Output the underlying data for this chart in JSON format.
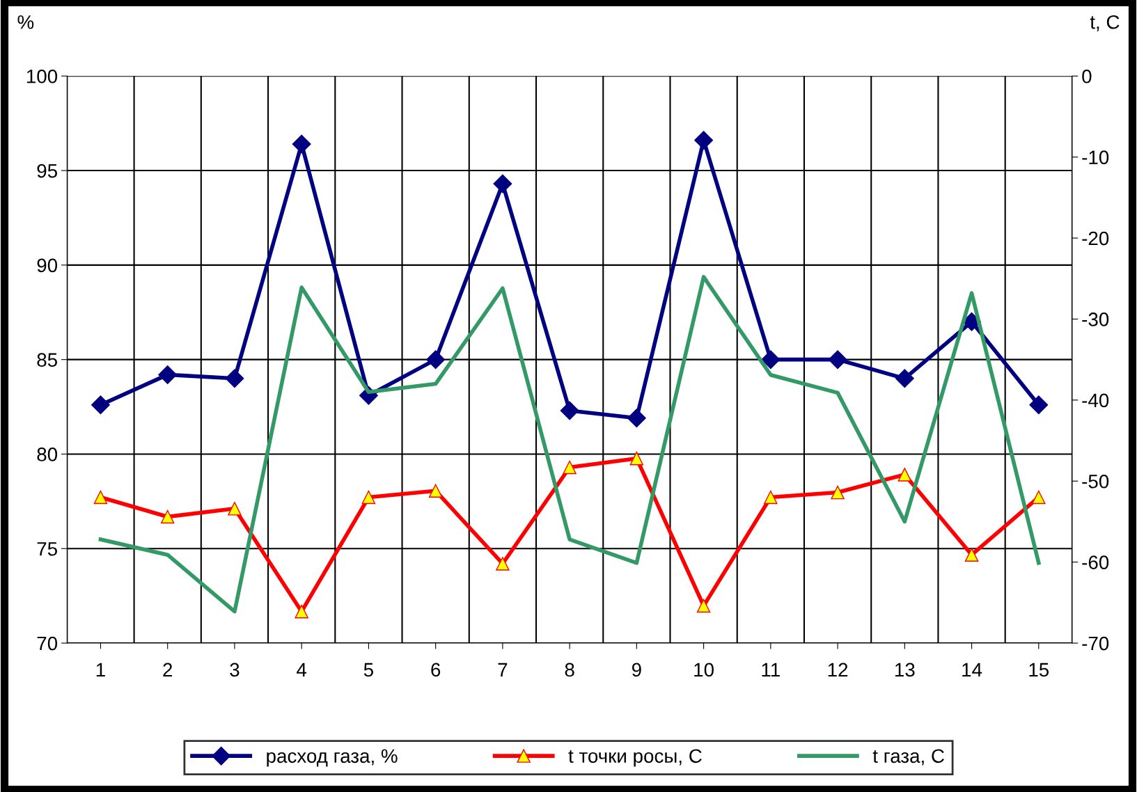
{
  "chart_data": {
    "type": "line",
    "ylabel": "%",
    "y2label": "t, C",
    "categories": [
      "1",
      "2",
      "3",
      "4",
      "5",
      "6",
      "7",
      "8",
      "9",
      "10",
      "11",
      "12",
      "13",
      "14",
      "15"
    ],
    "series": [
      {
        "name": "расход газа, %",
        "color": "#000080",
        "marker": "diamond",
        "values": [
          82.6,
          84.2,
          84.0,
          96.4,
          83.1,
          85.0,
          94.3,
          82.3,
          81.9,
          96.6,
          85.0,
          85.0,
          84.0,
          87.0,
          82.6
        ]
      },
      {
        "name": "t точки росы, C",
        "color": "#ff0000",
        "marker": "triangle",
        "axis": "y2",
        "values": [
          -52,
          -54.4,
          -53.4,
          -66.1,
          -52,
          -51.2,
          -60.2,
          -48.3,
          -47.2,
          -65.4,
          -52,
          -51.4,
          -49.2,
          -59.1,
          -52
        ]
      },
      {
        "name": "t газа, C",
        "color": "#339966",
        "marker": "none",
        "axis": "y2",
        "values": [
          -57.2,
          -59.1,
          -66.1,
          -26.1,
          -39.0,
          -38.0,
          -26.2,
          -57.2,
          -60.1,
          -24.8,
          -36.9,
          -39.1,
          -55.0,
          -26.8,
          -60.1
        ]
      }
    ],
    "ylim": [
      70,
      100
    ],
    "yticks": [
      70,
      75,
      80,
      85,
      90,
      95,
      100
    ],
    "y2lim": [
      -70,
      0
    ],
    "y2ticks": [
      -70,
      -60,
      -50,
      -40,
      -30,
      -20,
      -10,
      0
    ],
    "grid": true,
    "legend": "bottom"
  }
}
